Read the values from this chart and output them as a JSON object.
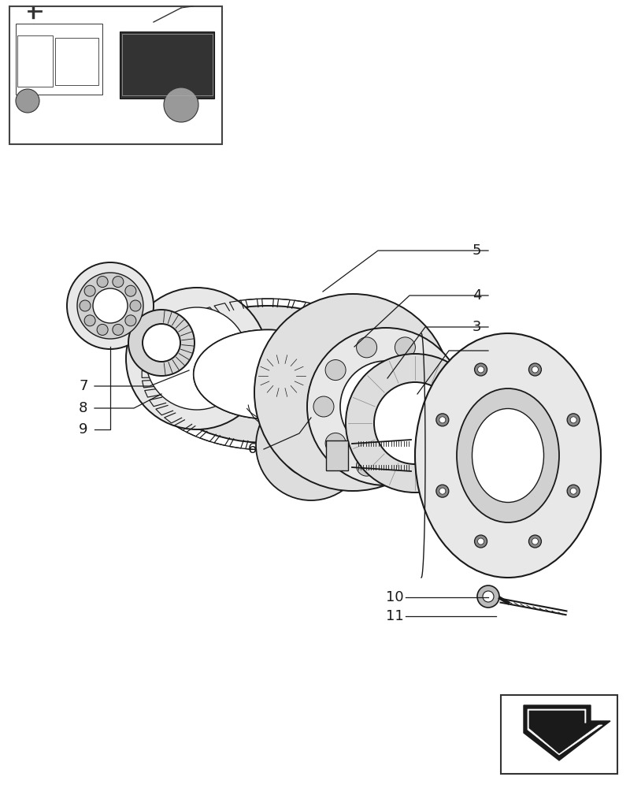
{
  "background_color": "#ffffff",
  "fig_width": 8.0,
  "fig_height": 10.0,
  "dpi": 100,
  "color_dark": "#1a1a1a",
  "color_light": "#ffffff",
  "color_mid": "#e8e8e8"
}
